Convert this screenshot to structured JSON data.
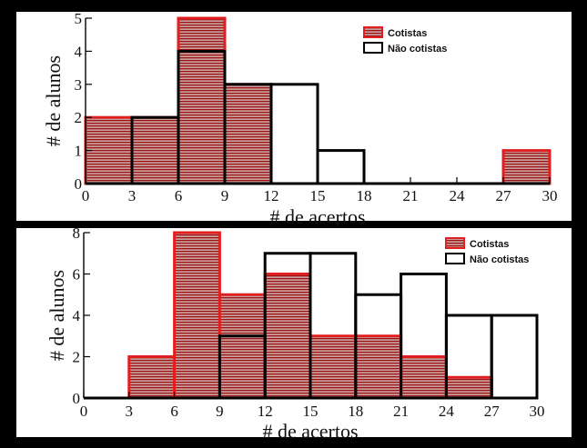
{
  "colors": {
    "cotistas_edge": "#e02020",
    "cotistas_hatch": "#9c1414",
    "cotistas_fill": "#c9a0a0",
    "nao_cotistas_edge": "#000000",
    "background": "#000000",
    "panel": "#ffffff"
  },
  "chart_data": [
    {
      "type": "bar",
      "bin_edges": [
        0,
        3,
        6,
        9,
        12,
        15,
        18,
        21,
        24,
        27,
        30
      ],
      "xticks": [
        "0",
        "3",
        "6",
        "9",
        "12",
        "15",
        "18",
        "21",
        "24",
        "27",
        "30"
      ],
      "yticks": [
        "0",
        "1",
        "2",
        "3",
        "4",
        "5"
      ],
      "ylim": [
        0,
        5
      ],
      "xlim": [
        0,
        30
      ],
      "xlabel": "# de acertos",
      "ylabel": "# de alunos",
      "legend_position": "top-right",
      "series": [
        {
          "name": "Cotistas",
          "style": "hatched-red",
          "values": [
            2,
            2,
            5,
            3,
            0,
            0,
            0,
            0,
            0,
            1
          ]
        },
        {
          "name": "Não cotistas",
          "style": "outline-black",
          "values": [
            0,
            2,
            4,
            3,
            3,
            1,
            0,
            0,
            0,
            0
          ]
        }
      ]
    },
    {
      "type": "bar",
      "bin_edges": [
        0,
        3,
        6,
        9,
        12,
        15,
        18,
        21,
        24,
        27,
        30
      ],
      "xticks": [
        "0",
        "3",
        "6",
        "9",
        "12",
        "15",
        "18",
        "21",
        "24",
        "27",
        "30"
      ],
      "yticks": [
        "0",
        "2",
        "4",
        "6",
        "8"
      ],
      "ylim": [
        0,
        8
      ],
      "xlim": [
        0,
        30
      ],
      "xlabel": "# de acertos",
      "ylabel": "# de alunos",
      "legend_position": "top-right",
      "series": [
        {
          "name": "Cotistas",
          "style": "hatched-red",
          "values": [
            0,
            2,
            8,
            5,
            6,
            3,
            3,
            2,
            1,
            0
          ]
        },
        {
          "name": "Não cotistas",
          "style": "outline-black",
          "values": [
            0,
            0,
            0,
            3,
            7,
            7,
            5,
            6,
            4,
            4
          ]
        }
      ]
    }
  ]
}
